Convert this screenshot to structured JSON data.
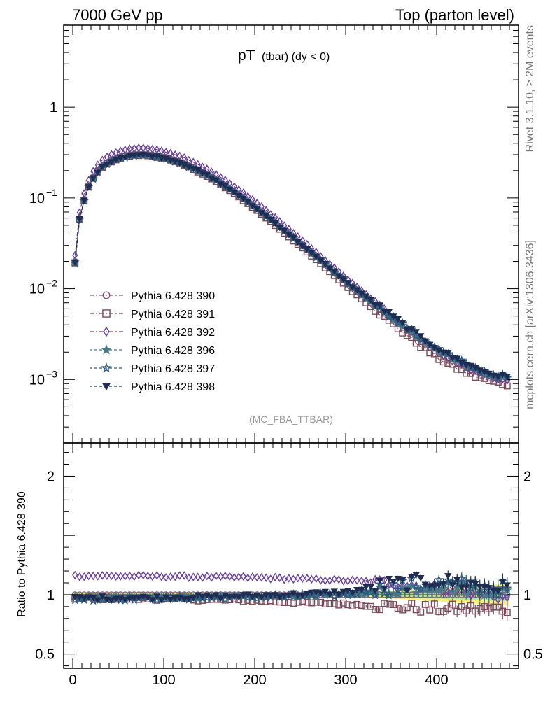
{
  "header": {
    "left": "7000 GeV pp",
    "right": "Top (parton level)"
  },
  "side_labels": {
    "top": "Rivet 3.1.10, ≥ 2M events",
    "bottom": "mcplots.cern.ch [arXiv:1306.3436]"
  },
  "chart_data": {
    "type": "scatter",
    "title_main": "pT",
    "title_sub": "(tbar) (dy < 0)",
    "watermark": "(MC_FBA_TTBAR)",
    "main": {
      "yscale": "log",
      "ylim": [
        0.0002,
        8
      ],
      "xlim": [
        -10,
        490
      ],
      "y_ticks": [
        {
          "value": 1,
          "label": "1"
        },
        {
          "value": 0.1,
          "label": "10",
          "exp": "−1"
        },
        {
          "value": 0.01,
          "label": "10",
          "exp": "−2"
        },
        {
          "value": 0.001,
          "label": "10",
          "exp": "−3"
        }
      ]
    },
    "ratio": {
      "ylabel": "Ratio to Pythia 6.428 390",
      "ylim": [
        0.38,
        2.28
      ],
      "y_ticks": [
        {
          "value": 2,
          "label": "2"
        },
        {
          "value": 1,
          "label": "1"
        },
        {
          "value": 0.5,
          "label": "0.5"
        }
      ]
    },
    "x_ticks": [
      {
        "value": 0,
        "label": "0"
      },
      {
        "value": 100,
        "label": "100"
      },
      {
        "value": 200,
        "label": "200"
      },
      {
        "value": 300,
        "label": "300"
      },
      {
        "value": 400,
        "label": "400"
      }
    ],
    "bins": {
      "start": 2.5,
      "step": 5,
      "count": 96
    },
    "reference_points": {
      "x": [
        2.5,
        7.5,
        12.5,
        17.5,
        22.5,
        27.5,
        32.5,
        40,
        50,
        60,
        70,
        80,
        90,
        100,
        110,
        120,
        130,
        140,
        150,
        160,
        170,
        180,
        190,
        200,
        210,
        220,
        230,
        240,
        250,
        260,
        270,
        280,
        290,
        300,
        320,
        340,
        360,
        380,
        400,
        420,
        440,
        460,
        477.5
      ],
      "y": [
        0.02,
        0.06,
        0.097,
        0.135,
        0.17,
        0.2,
        0.225,
        0.255,
        0.28,
        0.298,
        0.306,
        0.305,
        0.297,
        0.283,
        0.265,
        0.245,
        0.222,
        0.198,
        0.175,
        0.152,
        0.131,
        0.112,
        0.095,
        0.08,
        0.067,
        0.0555,
        0.046,
        0.038,
        0.0313,
        0.0258,
        0.0212,
        0.0175,
        0.0144,
        0.0118,
        0.0081,
        0.0056,
        0.0039,
        0.00275,
        0.002,
        0.00155,
        0.00125,
        0.00108,
        0.001
      ]
    },
    "series": [
      {
        "name": "Pythia 6.428 390",
        "color": "#8a5a7e",
        "marker": "circle-open",
        "dash": "6,3,2,3",
        "ratio_ref": [
          [
            0,
            1.0
          ],
          [
            480,
            1.0
          ]
        ],
        "ratio_jitter": 0
      },
      {
        "name": "Pythia 6.428 391",
        "color": "#7a4a5a",
        "marker": "square-open",
        "dash": "6,3,2,3",
        "ratio_ref": [
          [
            0,
            0.97
          ],
          [
            100,
            0.965
          ],
          [
            200,
            0.95
          ],
          [
            300,
            0.92
          ],
          [
            340,
            0.905
          ],
          [
            400,
            0.88
          ],
          [
            480,
            0.88
          ]
        ],
        "ratio_jitter": 0.012
      },
      {
        "name": "Pythia 6.428 392",
        "color": "#6a3e9c",
        "marker": "diamond-open",
        "dash": "6,3,2,3",
        "ratio_ref": [
          [
            0,
            1.16
          ],
          [
            100,
            1.155
          ],
          [
            200,
            1.145
          ],
          [
            300,
            1.12
          ],
          [
            350,
            1.1
          ],
          [
            400,
            1.06
          ],
          [
            480,
            0.97
          ]
        ],
        "ratio_jitter": 0.01
      },
      {
        "name": "Pythia 6.428 396",
        "color": "#4a7a8a",
        "marker": "star-filled",
        "dash": "4,3",
        "ratio_ref": [
          [
            0,
            0.975
          ],
          [
            100,
            0.975
          ],
          [
            200,
            0.985
          ],
          [
            300,
            1.0
          ],
          [
            340,
            1.03
          ],
          [
            400,
            1.08
          ],
          [
            480,
            1.02
          ]
        ],
        "ratio_jitter": 0.014
      },
      {
        "name": "Pythia 6.428 397",
        "color": "#2e5a7c",
        "marker": "star-open",
        "dash": "4,3",
        "ratio_ref": [
          [
            0,
            0.965
          ],
          [
            100,
            0.97
          ],
          [
            200,
            0.98
          ],
          [
            300,
            1.0
          ],
          [
            340,
            1.05
          ],
          [
            400,
            1.1
          ],
          [
            480,
            1.05
          ]
        ],
        "ratio_jitter": 0.018
      },
      {
        "name": "Pythia 6.428 398",
        "color": "#1f2d52",
        "marker": "triangle-down-filled",
        "dash": "4,3",
        "ratio_ref": [
          [
            0,
            0.97
          ],
          [
            100,
            0.975
          ],
          [
            200,
            0.99
          ],
          [
            300,
            1.02
          ],
          [
            340,
            1.08
          ],
          [
            400,
            1.12
          ],
          [
            480,
            1.05
          ]
        ],
        "ratio_jitter": 0.018
      }
    ],
    "ratio_band": {
      "color_inner": "#3aaa3a",
      "color_outer": "#f5f07a",
      "color_mid": "#b8e6a0"
    }
  }
}
